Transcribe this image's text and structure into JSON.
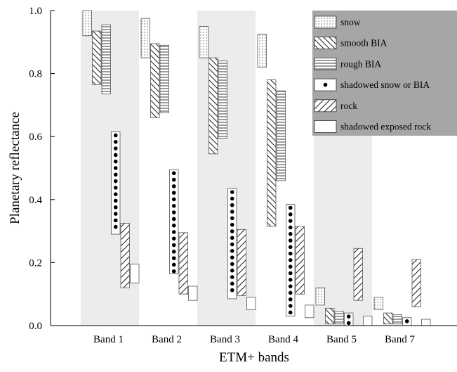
{
  "chart_data": {
    "type": "bar",
    "title": "",
    "xlabel": "ETM+ bands",
    "ylabel": "Planetary reflectance",
    "ylim": [
      0.0,
      1.0
    ],
    "yticks": [
      "0.0",
      "0.2",
      "0.4",
      "0.6",
      "0.8",
      "1.0"
    ],
    "grid": false,
    "legend_position": "top-right",
    "categories": [
      "Band 1",
      "Band 2",
      "Band 3",
      "Band 4",
      "Band 5",
      "Band 7"
    ],
    "shaded_bands": [
      "Band 1",
      "Band 3",
      "Band 5"
    ],
    "series": [
      {
        "name": "snow",
        "pattern": "dots-fine",
        "ranges": [
          [
            0.92,
            1.0
          ],
          [
            0.85,
            0.975
          ],
          [
            0.85,
            0.95
          ],
          [
            0.82,
            0.925
          ],
          [
            0.065,
            0.12
          ],
          [
            0.05,
            0.09
          ]
        ]
      },
      {
        "name": "smooth BIA",
        "pattern": "diagonal-back",
        "ranges": [
          [
            0.765,
            0.935
          ],
          [
            0.66,
            0.895
          ],
          [
            0.545,
            0.85
          ],
          [
            0.315,
            0.78
          ],
          [
            0.005,
            0.055
          ],
          [
            0.005,
            0.04
          ]
        ]
      },
      {
        "name": "rough BIA",
        "pattern": "horizontal",
        "ranges": [
          [
            0.735,
            0.955
          ],
          [
            0.675,
            0.89
          ],
          [
            0.595,
            0.84
          ],
          [
            0.46,
            0.745
          ],
          [
            0.005,
            0.045
          ],
          [
            0.005,
            0.035
          ]
        ]
      },
      {
        "name": "shadowed snow or BIA",
        "pattern": "dots-large",
        "ranges": [
          [
            0.29,
            0.615
          ],
          [
            0.165,
            0.495
          ],
          [
            0.085,
            0.435
          ],
          [
            0.03,
            0.385
          ],
          [
            0.0,
            0.04
          ],
          [
            0.0,
            0.025
          ]
        ]
      },
      {
        "name": "rock",
        "pattern": "diagonal-forward",
        "ranges": [
          [
            0.12,
            0.325
          ],
          [
            0.1,
            0.295
          ],
          [
            0.095,
            0.305
          ],
          [
            0.1,
            0.315
          ],
          [
            0.08,
            0.245
          ],
          [
            0.06,
            0.21
          ]
        ]
      },
      {
        "name": "shadowed exposed rock",
        "pattern": "blank",
        "ranges": [
          [
            0.135,
            0.195
          ],
          [
            0.08,
            0.125
          ],
          [
            0.05,
            0.09
          ],
          [
            0.025,
            0.065
          ],
          [
            0.0,
            0.03
          ],
          [
            0.0,
            0.02
          ]
        ]
      }
    ]
  }
}
